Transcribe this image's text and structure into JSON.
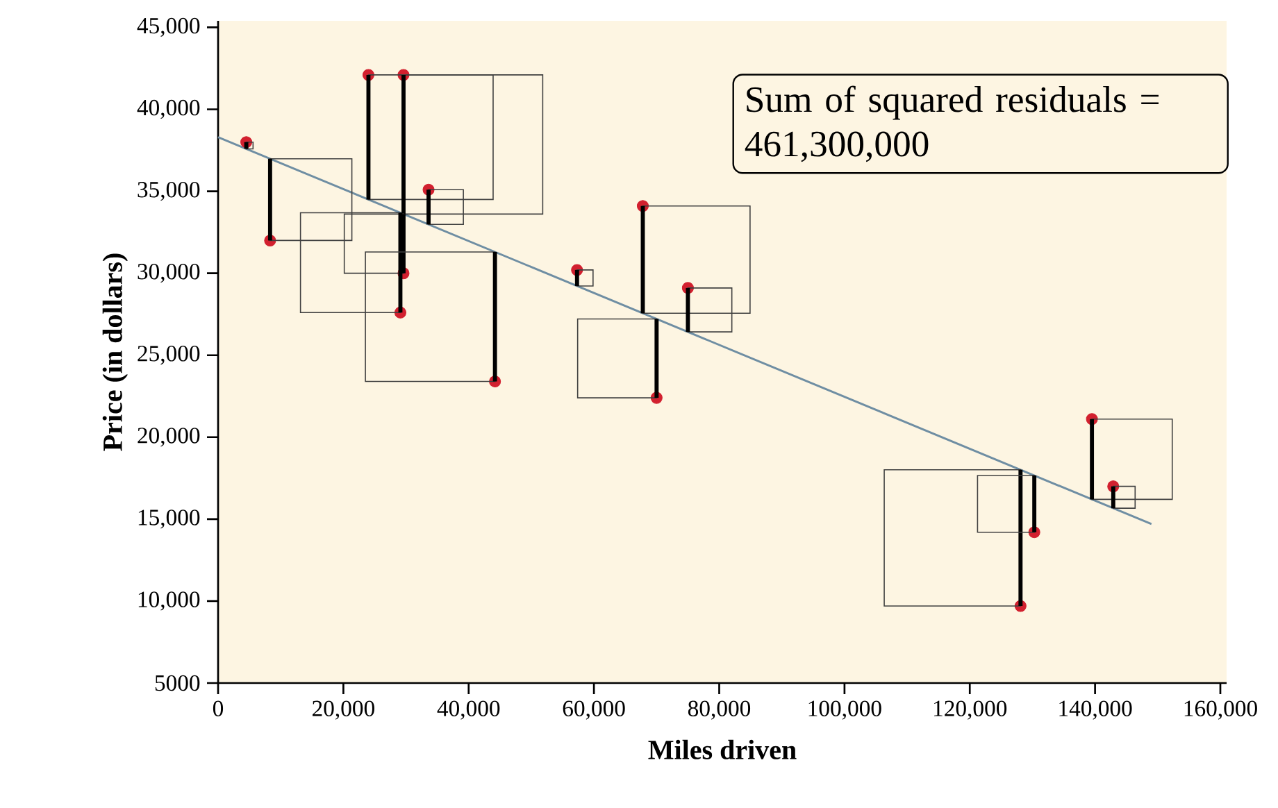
{
  "chart_data": {
    "type": "scatter",
    "xlabel": "Miles driven",
    "ylabel": "Price (in dollars)",
    "xlim": [
      0,
      161000
    ],
    "ylim": [
      5000,
      45400
    ],
    "xticks": [
      0,
      {
        "value": 20000,
        "label": "20,000"
      },
      {
        "value": 40000,
        "label": "40,000"
      },
      {
        "value": 60000,
        "label": "60,000"
      },
      {
        "value": 80000,
        "label": "80,000"
      },
      {
        "value": 100000,
        "label": "100,000"
      },
      {
        "value": 120000,
        "label": "120,000"
      },
      {
        "value": 140000,
        "label": "140,000"
      },
      {
        "value": 160000,
        "label": "160,000"
      }
    ],
    "yticks": [
      5000,
      {
        "value": 10000,
        "label": "10,000"
      },
      {
        "value": 15000,
        "label": "15,000"
      },
      {
        "value": 20000,
        "label": "20,000"
      },
      {
        "value": 25000,
        "label": "25,000"
      },
      {
        "value": 30000,
        "label": "30,000"
      },
      {
        "value": 35000,
        "label": "35,000"
      },
      {
        "value": 40000,
        "label": "40,000"
      },
      {
        "value": 45000,
        "label": "45,000"
      }
    ],
    "grid": false,
    "series": [
      {
        "marker": "circle",
        "color": "#d2202f",
        "x": [
          4500,
          8300,
          24000,
          29600,
          29600,
          29100,
          33600,
          44200,
          57300,
          67800,
          70000,
          75000,
          128100,
          130300,
          139500,
          142900
        ],
        "values": [
          38000,
          32000,
          42100,
          42100,
          30000,
          27600,
          35100,
          23400,
          30200,
          34100,
          22400,
          29100,
          9700,
          14200,
          21100,
          17000
        ]
      },
      {
        "type": "line",
        "marker": "none",
        "color": "#6f8ea3",
        "x": [
          0,
          149000
        ],
        "values": [
          38300,
          14700
        ]
      }
    ],
    "annotations": [
      "Sum of squared residuals = 461,300,000"
    ]
  }
}
